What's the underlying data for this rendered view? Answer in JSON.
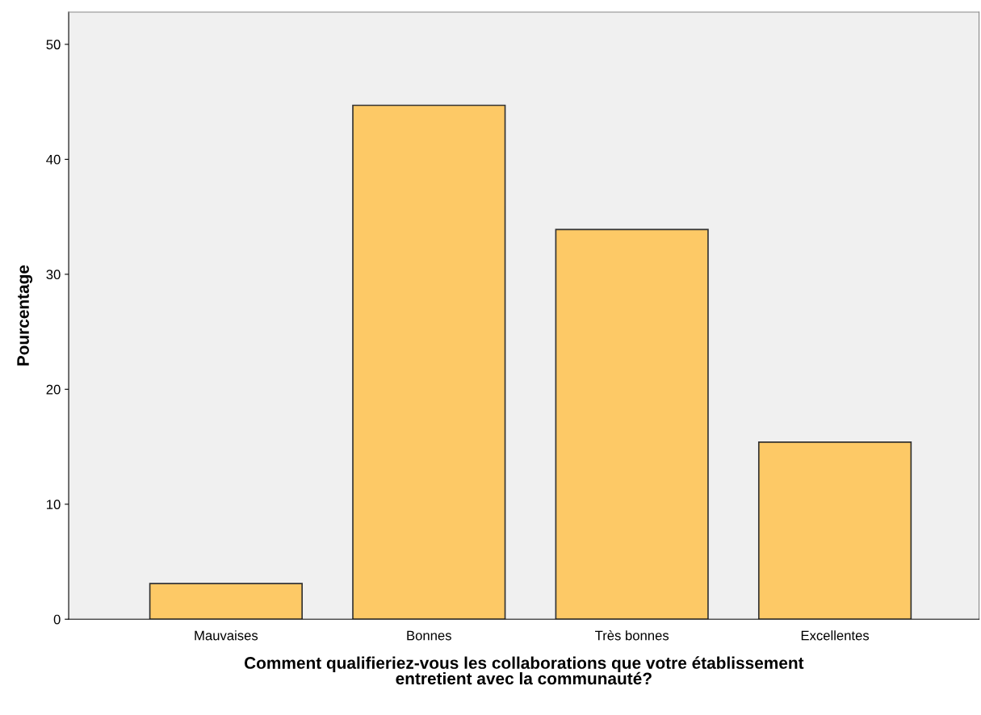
{
  "chart_data": {
    "type": "bar",
    "xlabel": "Comment qualifieriez-vous les collaborations que votre établissement\nentretient avec la communauté?",
    "ylabel": "Pourcentage",
    "categories": [
      "Mauvaises",
      "Bonnes",
      "Très bonnes",
      "Excellentes"
    ],
    "values": [
      3.1,
      44.7,
      33.9,
      15.4
    ],
    "color": "#fdc966",
    "ylim": [
      0,
      52.8
    ],
    "yticks": [
      0,
      10,
      20,
      30,
      40,
      50
    ],
    "grid": false
  }
}
